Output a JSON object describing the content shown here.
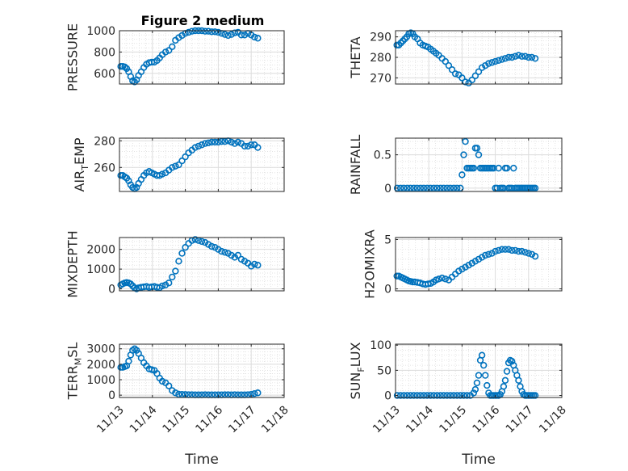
{
  "figure": {
    "title": "Figure 2 medium"
  },
  "chart_data": [
    {
      "type": "scatter",
      "title": "Figure 2 medium",
      "ylabel": "PRESSURE",
      "xlabel": "",
      "ylim": [
        500,
        1000
      ],
      "yticks": [
        600,
        800,
        1000
      ],
      "ytick_labels": [
        "600",
        "800",
        "1000"
      ],
      "xlim": [
        0,
        5
      ],
      "xticks": [
        0,
        1,
        2,
        3,
        4,
        5
      ],
      "xtick_labels": [
        "11/13",
        "11/14",
        "11/15",
        "11/16",
        "11/17",
        "11/18"
      ],
      "grid": true,
      "marker_color": "#0072bd",
      "x": [
        0.04,
        0.1,
        0.16,
        0.22,
        0.28,
        0.34,
        0.4,
        0.46,
        0.52,
        0.58,
        0.66,
        0.74,
        0.82,
        0.9,
        0.98,
        1.06,
        1.14,
        1.22,
        1.3,
        1.4,
        1.5,
        1.6,
        1.7,
        1.8,
        1.9,
        2.0,
        2.1,
        2.2,
        2.3,
        2.4,
        2.5,
        2.6,
        2.7,
        2.8,
        2.9,
        3.0,
        3.1,
        3.2,
        3.3,
        3.4,
        3.5,
        3.6,
        3.7,
        3.8,
        3.9,
        4.0,
        4.1,
        4.2
      ],
      "y": [
        665,
        665,
        660,
        645,
        615,
        570,
        530,
        520,
        540,
        580,
        615,
        655,
        685,
        700,
        705,
        705,
        720,
        745,
        775,
        800,
        815,
        850,
        910,
        935,
        955,
        975,
        985,
        995,
        1000,
        1000,
        1000,
        995,
        995,
        990,
        990,
        985,
        975,
        965,
        955,
        965,
        980,
        985,
        960,
        960,
        975,
        960,
        940,
        930
      ]
    },
    {
      "type": "scatter",
      "ylabel": "THETA",
      "xlabel": "",
      "ylim": [
        267,
        293
      ],
      "yticks": [
        270,
        280,
        290
      ],
      "ytick_labels": [
        "270",
        "280",
        "290"
      ],
      "xlim": [
        0,
        5
      ],
      "xticks": [
        0,
        1,
        2,
        3,
        4,
        5
      ],
      "xtick_labels": [
        "11/13",
        "11/14",
        "11/15",
        "11/16",
        "11/17",
        "11/18"
      ],
      "grid": true,
      "marker_color": "#0072bd",
      "x": [
        0.04,
        0.1,
        0.16,
        0.22,
        0.28,
        0.34,
        0.4,
        0.46,
        0.52,
        0.58,
        0.66,
        0.74,
        0.82,
        0.9,
        0.98,
        1.06,
        1.14,
        1.22,
        1.3,
        1.4,
        1.5,
        1.6,
        1.7,
        1.8,
        1.9,
        2.0,
        2.1,
        2.2,
        2.3,
        2.4,
        2.5,
        2.6,
        2.7,
        2.8,
        2.9,
        3.0,
        3.1,
        3.2,
        3.3,
        3.4,
        3.5,
        3.6,
        3.7,
        3.8,
        3.9,
        4.0,
        4.1,
        4.2
      ],
      "y": [
        286,
        286,
        287,
        288,
        289,
        290,
        291.5,
        292,
        291.5,
        290,
        289,
        287,
        286,
        285.5,
        285,
        284,
        283,
        282,
        281,
        279.5,
        278,
        276,
        274,
        272,
        271.5,
        270,
        268,
        267.5,
        269,
        271,
        273,
        275,
        276,
        277,
        277.5,
        278,
        278.5,
        279,
        279.5,
        280,
        280,
        280.5,
        281,
        280.5,
        280.5,
        280,
        280,
        279.5
      ]
    },
    {
      "type": "scatter",
      "ylabel": "AIR_TEMP",
      "xlabel": "",
      "ylim": [
        242,
        282
      ],
      "yticks": [
        260,
        280
      ],
      "ytick_labels": [
        "260",
        "280"
      ],
      "xlim": [
        0,
        5
      ],
      "xticks": [
        0,
        1,
        2,
        3,
        4,
        5
      ],
      "xtick_labels": [
        "11/13",
        "11/14",
        "11/15",
        "11/16",
        "11/17",
        "11/18"
      ],
      "grid": true,
      "marker_color": "#0072bd",
      "x": [
        0.04,
        0.1,
        0.16,
        0.22,
        0.28,
        0.34,
        0.4,
        0.46,
        0.52,
        0.58,
        0.66,
        0.74,
        0.82,
        0.9,
        0.98,
        1.06,
        1.14,
        1.22,
        1.3,
        1.4,
        1.5,
        1.6,
        1.7,
        1.8,
        1.9,
        2.0,
        2.1,
        2.2,
        2.3,
        2.4,
        2.5,
        2.6,
        2.7,
        2.8,
        2.9,
        3.0,
        3.1,
        3.2,
        3.3,
        3.4,
        3.5,
        3.6,
        3.7,
        3.8,
        3.9,
        4.0,
        4.1,
        4.2
      ],
      "y": [
        254,
        254,
        253,
        252,
        250,
        247,
        245,
        244,
        245,
        248,
        251,
        254,
        256,
        257,
        256,
        255,
        254,
        254,
        255,
        256,
        258,
        260,
        261,
        262,
        265,
        268,
        271,
        273,
        275,
        276,
        277,
        278,
        278.5,
        279,
        279,
        279,
        279.5,
        279.5,
        280,
        279,
        278,
        279,
        278,
        276,
        276,
        277,
        277,
        275
      ]
    },
    {
      "type": "scatter",
      "ylabel": "RAINFALL",
      "xlabel": "",
      "ylim": [
        -0.05,
        0.75
      ],
      "yticks": [
        0,
        0.5
      ],
      "ytick_labels": [
        "0",
        "0.5"
      ],
      "xlim": [
        0,
        5
      ],
      "xticks": [
        0,
        1,
        2,
        3,
        4,
        5
      ],
      "xtick_labels": [
        "11/13",
        "11/14",
        "11/15",
        "11/16",
        "11/17",
        "11/18"
      ],
      "grid": true,
      "marker_color": "#0072bd",
      "x": [
        0.05,
        0.15,
        0.25,
        0.35,
        0.45,
        0.55,
        0.65,
        0.75,
        0.85,
        0.95,
        1.05,
        1.15,
        1.25,
        1.35,
        1.45,
        1.55,
        1.65,
        1.75,
        1.85,
        1.95,
        2.0,
        2.05,
        2.1,
        2.15,
        2.2,
        2.25,
        2.3,
        2.35,
        2.4,
        2.45,
        2.5,
        2.55,
        2.6,
        2.65,
        2.7,
        2.75,
        2.8,
        2.85,
        2.9,
        2.95,
        3.0,
        3.05,
        3.1,
        3.15,
        3.2,
        3.25,
        3.3,
        3.35,
        3.4,
        3.45,
        3.5,
        3.55,
        3.6,
        3.65,
        3.7,
        3.75,
        3.8,
        3.85,
        3.9,
        3.95,
        4.0,
        4.05,
        4.1,
        4.15,
        4.2
      ],
      "y": [
        0,
        0,
        0,
        0,
        0,
        0,
        0,
        0,
        0,
        0,
        0,
        0,
        0,
        0,
        0,
        0,
        0,
        0,
        0,
        0,
        0.2,
        0.5,
        0.7,
        0.3,
        0.3,
        0.3,
        0.3,
        0.3,
        0.6,
        0.6,
        0.5,
        0.3,
        0.3,
        0.3,
        0.3,
        0.3,
        0.3,
        0.3,
        0.3,
        0.3,
        0,
        0,
        0.3,
        0,
        0,
        0,
        0.3,
        0.3,
        0,
        0,
        0,
        0.3,
        0,
        0,
        0,
        0,
        0,
        0,
        0,
        0,
        0,
        0,
        0,
        0,
        0
      ]
    },
    {
      "type": "scatter",
      "ylabel": "MIXDEPTH",
      "xlabel": "",
      "ylim": [
        -100,
        2600
      ],
      "yticks": [
        0,
        1000,
        2000
      ],
      "ytick_labels": [
        "0",
        "1000",
        "2000"
      ],
      "xlim": [
        0,
        5
      ],
      "xticks": [
        0,
        1,
        2,
        3,
        4,
        5
      ],
      "xtick_labels": [
        "11/13",
        "11/14",
        "11/15",
        "11/16",
        "11/17",
        "11/18"
      ],
      "grid": true,
      "marker_color": "#0072bd",
      "x": [
        0.04,
        0.1,
        0.16,
        0.22,
        0.28,
        0.34,
        0.4,
        0.46,
        0.52,
        0.58,
        0.66,
        0.74,
        0.82,
        0.9,
        0.98,
        1.06,
        1.14,
        1.22,
        1.3,
        1.4,
        1.5,
        1.6,
        1.7,
        1.8,
        1.9,
        2.0,
        2.1,
        2.2,
        2.3,
        2.4,
        2.5,
        2.6,
        2.7,
        2.8,
        2.9,
        3.0,
        3.1,
        3.2,
        3.3,
        3.4,
        3.5,
        3.6,
        3.7,
        3.8,
        3.9,
        4.0,
        4.1,
        4.2
      ],
      "y": [
        200,
        250,
        300,
        320,
        300,
        250,
        150,
        50,
        0,
        50,
        80,
        100,
        120,
        80,
        100,
        120,
        80,
        60,
        150,
        200,
        300,
        600,
        900,
        1400,
        1800,
        2100,
        2300,
        2450,
        2500,
        2450,
        2400,
        2350,
        2250,
        2150,
        2100,
        2000,
        1900,
        1850,
        1800,
        1700,
        1600,
        1700,
        1500,
        1400,
        1300,
        1150,
        1250,
        1200
      ]
    },
    {
      "type": "scatter",
      "ylabel": "H2OMIXRA",
      "xlabel": "",
      "ylim": [
        -0.2,
        5.2
      ],
      "yticks": [
        0,
        5
      ],
      "ytick_labels": [
        "0",
        "5"
      ],
      "xlim": [
        0,
        5
      ],
      "xticks": [
        0,
        1,
        2,
        3,
        4,
        5
      ],
      "xtick_labels": [
        "11/13",
        "11/14",
        "11/15",
        "11/16",
        "11/17",
        "11/18"
      ],
      "grid": true,
      "marker_color": "#0072bd",
      "x": [
        0.04,
        0.1,
        0.16,
        0.22,
        0.28,
        0.34,
        0.4,
        0.46,
        0.52,
        0.58,
        0.66,
        0.74,
        0.82,
        0.9,
        0.98,
        1.06,
        1.14,
        1.22,
        1.3,
        1.4,
        1.5,
        1.6,
        1.7,
        1.8,
        1.9,
        2.0,
        2.1,
        2.2,
        2.3,
        2.4,
        2.5,
        2.6,
        2.7,
        2.8,
        2.9,
        3.0,
        3.1,
        3.2,
        3.3,
        3.4,
        3.5,
        3.6,
        3.7,
        3.8,
        3.9,
        4.0,
        4.1,
        4.2
      ],
      "y": [
        1.3,
        1.3,
        1.2,
        1.1,
        1.0,
        0.9,
        0.8,
        0.75,
        0.7,
        0.7,
        0.65,
        0.6,
        0.5,
        0.45,
        0.5,
        0.55,
        0.7,
        0.9,
        1.0,
        1.1,
        1.0,
        0.9,
        1.2,
        1.5,
        1.8,
        2.0,
        2.2,
        2.4,
        2.6,
        2.8,
        3.0,
        3.2,
        3.4,
        3.5,
        3.6,
        3.8,
        3.9,
        4.0,
        4.0,
        4.0,
        3.9,
        3.9,
        3.8,
        3.8,
        3.7,
        3.6,
        3.5,
        3.3
      ]
    },
    {
      "type": "scatter",
      "ylabel": "TERR_MSL",
      "xlabel": "Time",
      "ylim": [
        -150,
        3300
      ],
      "yticks": [
        0,
        1000,
        2000,
        3000
      ],
      "ytick_labels": [
        "0",
        "1000",
        "2000",
        "3000"
      ],
      "xlim": [
        0,
        5
      ],
      "xticks": [
        0,
        1,
        2,
        3,
        4,
        5
      ],
      "xtick_labels": [
        "11/13",
        "11/14",
        "11/15",
        "11/16",
        "11/17",
        "11/18"
      ],
      "grid": true,
      "marker_color": "#0072bd",
      "x": [
        0.04,
        0.1,
        0.16,
        0.22,
        0.28,
        0.34,
        0.4,
        0.46,
        0.52,
        0.58,
        0.66,
        0.74,
        0.82,
        0.9,
        0.98,
        1.06,
        1.14,
        1.22,
        1.3,
        1.4,
        1.5,
        1.6,
        1.7,
        1.8,
        1.9,
        2.0,
        2.1,
        2.2,
        2.3,
        2.4,
        2.5,
        2.6,
        2.7,
        2.8,
        2.9,
        3.0,
        3.1,
        3.2,
        3.3,
        3.4,
        3.5,
        3.6,
        3.7,
        3.8,
        3.9,
        4.0,
        4.1,
        4.2
      ],
      "y": [
        1800,
        1800,
        1850,
        1900,
        2200,
        2600,
        2900,
        3000,
        2900,
        2700,
        2400,
        2100,
        1900,
        1700,
        1650,
        1600,
        1400,
        1100,
        900,
        800,
        600,
        300,
        150,
        60,
        50,
        40,
        30,
        30,
        20,
        20,
        20,
        30,
        20,
        20,
        20,
        20,
        20,
        30,
        30,
        20,
        30,
        20,
        20,
        20,
        30,
        50,
        100,
        150
      ]
    },
    {
      "type": "scatter",
      "ylabel": "SUN_FLUX",
      "xlabel": "Time",
      "ylim": [
        -4,
        102
      ],
      "yticks": [
        0,
        50,
        100
      ],
      "ytick_labels": [
        "0",
        "50",
        "100"
      ],
      "xlim": [
        0,
        5
      ],
      "xticks": [
        0,
        1,
        2,
        3,
        4,
        5
      ],
      "xtick_labels": [
        "11/13",
        "11/14",
        "11/15",
        "11/16",
        "11/17",
        "11/18"
      ],
      "grid": true,
      "marker_color": "#0072bd",
      "x": [
        0.05,
        0.15,
        0.25,
        0.35,
        0.45,
        0.55,
        0.65,
        0.75,
        0.85,
        0.95,
        1.05,
        1.15,
        1.25,
        1.35,
        1.45,
        1.55,
        1.65,
        1.75,
        1.85,
        1.95,
        2.05,
        2.15,
        2.25,
        2.35,
        2.4,
        2.45,
        2.5,
        2.55,
        2.6,
        2.65,
        2.7,
        2.75,
        2.8,
        2.85,
        2.9,
        2.95,
        3.0,
        3.05,
        3.1,
        3.15,
        3.2,
        3.25,
        3.3,
        3.35,
        3.4,
        3.45,
        3.5,
        3.55,
        3.6,
        3.65,
        3.7,
        3.75,
        3.8,
        3.85,
        3.9,
        3.95,
        4.0,
        4.05,
        4.1,
        4.15,
        4.2
      ],
      "y": [
        0,
        0,
        0,
        0,
        0,
        0,
        0,
        0,
        0,
        0,
        0,
        0,
        0,
        0,
        0,
        0,
        0,
        0,
        0,
        0,
        0,
        0,
        0,
        5,
        12,
        25,
        40,
        70,
        80,
        60,
        40,
        20,
        5,
        0,
        0,
        0,
        0,
        0,
        0,
        2,
        8,
        18,
        30,
        48,
        65,
        70,
        68,
        60,
        50,
        40,
        30,
        18,
        8,
        2,
        0,
        0,
        0,
        0,
        0,
        0,
        0
      ]
    }
  ]
}
